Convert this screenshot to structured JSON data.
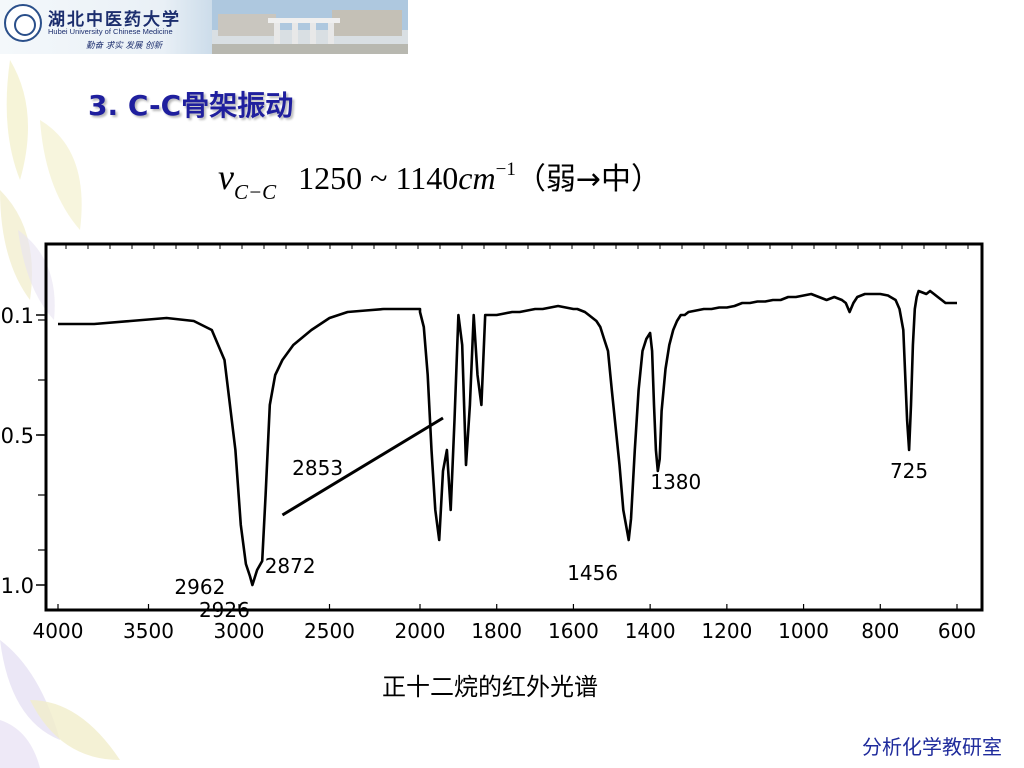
{
  "header": {
    "university_name": "湖北中医药大学",
    "university_english": "Hubei University of Chinese Medicine",
    "motto": "勤奋 求实 发展 创新"
  },
  "slide": {
    "title": "3. C-C骨架振动",
    "formula": {
      "symbol": "ν",
      "subscript": "C−C",
      "range": "1250 ~ 1140",
      "unit": "cm",
      "exponent": "−1",
      "note_open": "（弱",
      "arrow": "→",
      "note_close": "中）"
    }
  },
  "chart_data": {
    "type": "line",
    "title": "正十二烷的红外光谱",
    "xlabel": "",
    "ylabel": "",
    "x_tick_labels": [
      "4000",
      "3500",
      "3000",
      "2500",
      "2000",
      "1800",
      "1600",
      "1400",
      "1200",
      "1000",
      "800",
      "600"
    ],
    "y_tick_labels": [
      "0.1",
      "0.5",
      "1.0"
    ],
    "y_ticks": [
      0.1,
      0.5,
      1.0
    ],
    "grid": false,
    "series": [
      {
        "x": [
          4000,
          3800,
          3600,
          3400,
          3250,
          3150,
          3080,
          3020,
          2990,
          2962,
          2940,
          2926,
          2900,
          2872,
          2853,
          2830,
          2800,
          2760,
          2700,
          2600,
          2500,
          2400,
          2300,
          2200,
          2100,
          2000,
          2000,
          1990,
          1980,
          1970,
          1960,
          1950,
          1940,
          1930,
          1920,
          1910,
          1900,
          1890,
          1880,
          1870,
          1860,
          1850,
          1840,
          1830,
          1830,
          1800,
          1780,
          1760,
          1740,
          1720,
          1700,
          1680,
          1660,
          1640,
          1620,
          1600,
          1590,
          1580,
          1570,
          1560,
          1550,
          1540,
          1530,
          1520,
          1510,
          1500,
          1480,
          1470,
          1460,
          1456,
          1450,
          1440,
          1430,
          1420,
          1410,
          1400,
          1395,
          1390,
          1385,
          1380,
          1375,
          1370,
          1360,
          1350,
          1340,
          1330,
          1320,
          1310,
          1300,
          1280,
          1260,
          1240,
          1220,
          1200,
          1180,
          1160,
          1140,
          1120,
          1100,
          1080,
          1060,
          1040,
          1020,
          1000,
          980,
          960,
          940,
          920,
          900,
          890,
          880,
          870,
          860,
          850,
          840,
          820,
          800,
          780,
          760,
          750,
          740,
          735,
          730,
          725,
          720,
          715,
          710,
          705,
          700,
          690,
          680,
          670,
          660,
          650,
          640,
          630,
          620,
          600
        ],
        "y": [
          0.13,
          0.13,
          0.12,
          0.11,
          0.12,
          0.15,
          0.25,
          0.55,
          0.8,
          0.93,
          0.97,
          1.0,
          0.95,
          0.92,
          0.7,
          0.4,
          0.3,
          0.25,
          0.2,
          0.15,
          0.11,
          0.09,
          0.085,
          0.08,
          0.08,
          0.08,
          0.09,
          0.14,
          0.3,
          0.55,
          0.75,
          0.85,
          0.62,
          0.55,
          0.75,
          0.45,
          0.1,
          0.2,
          0.6,
          0.4,
          0.1,
          0.3,
          0.4,
          0.1,
          0.1,
          0.1,
          0.095,
          0.09,
          0.09,
          0.085,
          0.08,
          0.08,
          0.075,
          0.07,
          0.075,
          0.08,
          0.08,
          0.085,
          0.09,
          0.1,
          0.11,
          0.12,
          0.14,
          0.18,
          0.22,
          0.35,
          0.6,
          0.75,
          0.82,
          0.85,
          0.78,
          0.55,
          0.35,
          0.22,
          0.18,
          0.16,
          0.22,
          0.4,
          0.55,
          0.62,
          0.58,
          0.42,
          0.28,
          0.2,
          0.15,
          0.12,
          0.1,
          0.1,
          0.09,
          0.085,
          0.08,
          0.08,
          0.075,
          0.075,
          0.07,
          0.06,
          0.06,
          0.055,
          0.055,
          0.05,
          0.05,
          0.04,
          0.04,
          0.035,
          0.03,
          0.04,
          0.05,
          0.04,
          0.05,
          0.06,
          0.09,
          0.06,
          0.04,
          0.035,
          0.03,
          0.03,
          0.03,
          0.035,
          0.05,
          0.08,
          0.15,
          0.3,
          0.45,
          0.55,
          0.4,
          0.2,
          0.08,
          0.04,
          0.02,
          0.025,
          0.03,
          0.02,
          0.03,
          0.04,
          0.05,
          0.06,
          0.06,
          0.06
        ]
      }
    ],
    "annotations": [
      {
        "label": "2962",
        "x": 2962,
        "y": 0.93,
        "color": "#000000"
      },
      {
        "label": "2926",
        "x": 2926,
        "y": 1.0,
        "color": "#000000"
      },
      {
        "label": "2872",
        "x": 2872,
        "y": 0.92,
        "color": "#000000"
      },
      {
        "label": "2853",
        "x": 2853,
        "y": 0.7,
        "color": "#000000"
      },
      {
        "label": "1456",
        "x": 1456,
        "y": 0.85,
        "color": "#1f5fae"
      },
      {
        "label": "1380",
        "x": 1380,
        "y": 0.62,
        "color": "#1f5fae"
      },
      {
        "label": "725",
        "x": 725,
        "y": 0.55,
        "color": "#1f5fae"
      }
    ],
    "colors": {
      "line": "#000000",
      "peak_label_blue": "#1f5fae"
    }
  },
  "footer": {
    "text": "分析化学教研室"
  }
}
